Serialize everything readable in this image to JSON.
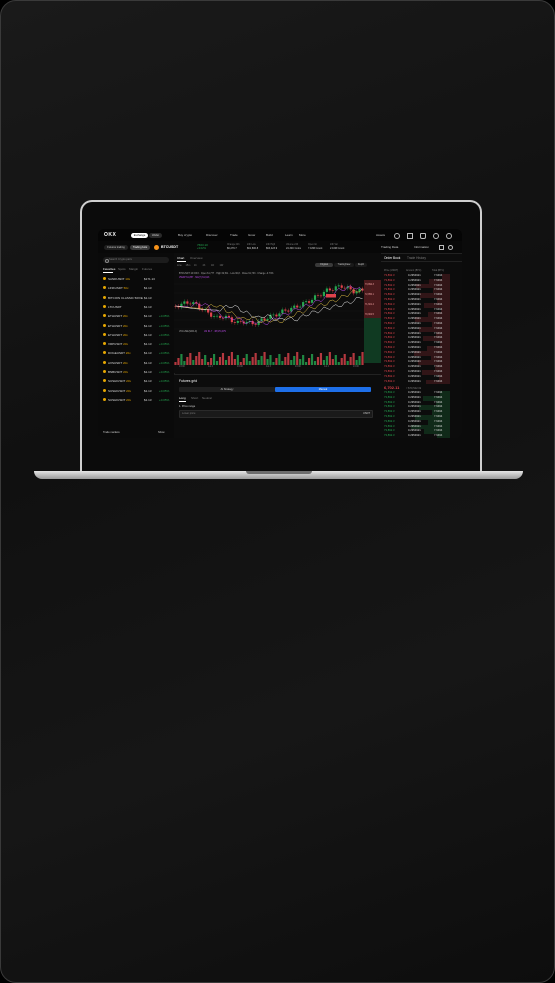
{
  "nav": {
    "logo": "OKX",
    "tabs": [
      "Exchange",
      "Wallet"
    ],
    "menu": [
      "Buy crypto",
      "Discover",
      "Trade",
      "Grow",
      "Build",
      "Learn",
      "More"
    ],
    "assets": "Assets"
  },
  "toolbar": {
    "modes": [
      "Futures trading",
      "Trading bots"
    ],
    "pair": "BTCUSDT",
    "price": "7663.10",
    "change": "+3.02%",
    "stats": [
      {
        "label": "Change 24h",
        "value": "$6,279.7"
      },
      {
        "label": "24h Low",
        "value": "$61,800.8"
      },
      {
        "label": "24h High",
        "value": "$63,423.9"
      },
      {
        "label": "Volume 24h",
        "value": "24.34K Coins"
      },
      {
        "label": "Open Int",
        "value": "7.18M Count"
      },
      {
        "label": "24h Vol",
        "value": "2.16M Count"
      }
    ],
    "trading_data": "Trading Data",
    "information": "Information"
  },
  "sidebar": {
    "search_placeholder": "Search Crypto pairs",
    "tabs": [
      "Favorites",
      "Spots",
      "Margin",
      "Futures"
    ],
    "items": [
      {
        "name": "SANDUSDT",
        "lev": "10x",
        "price": "$171.13",
        "change": ""
      },
      {
        "name": "LINKUSDT",
        "lev": "50x",
        "price": "$1.13",
        "change": ""
      },
      {
        "name": "BITCOIN CLASSIC 50X/E",
        "lev": "",
        "price": "$1.13",
        "change": ""
      },
      {
        "name": "LTCUSDT",
        "lev": "",
        "price": "$1.13",
        "change": ""
      },
      {
        "name": "ETHUSDT",
        "lev": "20x",
        "price": "$1.13",
        "change": "+0.05%"
      },
      {
        "name": "ETHUSDT",
        "lev": "20x",
        "price": "$1.13",
        "change": "+0.05%"
      },
      {
        "name": "ETHUSDT",
        "lev": "20x",
        "price": "$1.13",
        "change": "+0.05%"
      },
      {
        "name": "XRPUSDT",
        "lev": "20x",
        "price": "$1.13",
        "change": "+0.05%"
      },
      {
        "name": "DOGEUSDT",
        "lev": "20x",
        "price": "$1.13",
        "change": "+0.05%"
      },
      {
        "name": "AXSUSDT",
        "lev": "20x",
        "price": "$1.13",
        "change": "+0.05%"
      },
      {
        "name": "BNBUSDT",
        "lev": "20x",
        "price": "$1.13",
        "change": "+0.05%"
      },
      {
        "name": "SUSHIUSDT",
        "lev": "20x",
        "price": "$1.13",
        "change": "+0.05%"
      },
      {
        "name": "SUSHIUSDT",
        "lev": "20x",
        "price": "$1.13",
        "change": "+0.05%"
      },
      {
        "name": "SUSHIUSDT",
        "lev": "20x",
        "price": "$1.13",
        "change": "+0.05%"
      }
    ],
    "footer_left": "Trade markets",
    "footer_right": "Show"
  },
  "chart": {
    "tabs": [
      "Chart",
      "Overview"
    ],
    "intervals": [
      "Line",
      "15m",
      "1h",
      "4h",
      "1D",
      "1W"
    ],
    "views": [
      "Original",
      "TradingView",
      "Depth"
    ],
    "legend_1": "BTCUSDT 1D OKX · Open 61,777 · High 62,511 · Low 60,8 · Close 61,733 · Change -0.73%",
    "legend_2": "VWAP 61,857 · MA(7) 61,913",
    "volume_label": "VOLUME(SMA 9)",
    "volume_value": "Vol 61.7 · 38,974,079",
    "x_labels": [
      "13:00",
      "Jul 2",
      "13:00",
      "Jul 3",
      "13:00",
      "Jul 4",
      "13:00"
    ],
    "price_tags": [
      "73,892.3",
      "72,850.1",
      "71,601.4",
      "70,902.5"
    ],
    "colors": {
      "up": "#25a750",
      "down": "#e0434c",
      "ma1": "#c24df2",
      "ma2": "#e8c547",
      "ma3": "#f2f2f2"
    }
  },
  "grid": {
    "title": "Futures grid",
    "tabs": [
      "AI Strategy",
      "Manual"
    ],
    "sub_tabs": [
      "Long",
      "Short",
      "Neutral"
    ],
    "price_range_label": "1. Price range",
    "lower_price_placeholder": "Lower price",
    "unit": "USDT"
  },
  "orderbook": {
    "tabs": [
      "Order Book",
      "Trade History"
    ],
    "headers": [
      "Price (USDT)",
      "Amount (BTC)",
      "Total (BTC)"
    ],
    "asks_price": "73,892.3",
    "asks_amount": "0.2954921",
    "asks_total": "7.6494",
    "last_price": "6,702.11",
    "last_usd": "≈ $70,542.19",
    "bids_price": "73,892.3",
    "bids_amount": "0.2954921",
    "bids_total": "7.6494"
  }
}
